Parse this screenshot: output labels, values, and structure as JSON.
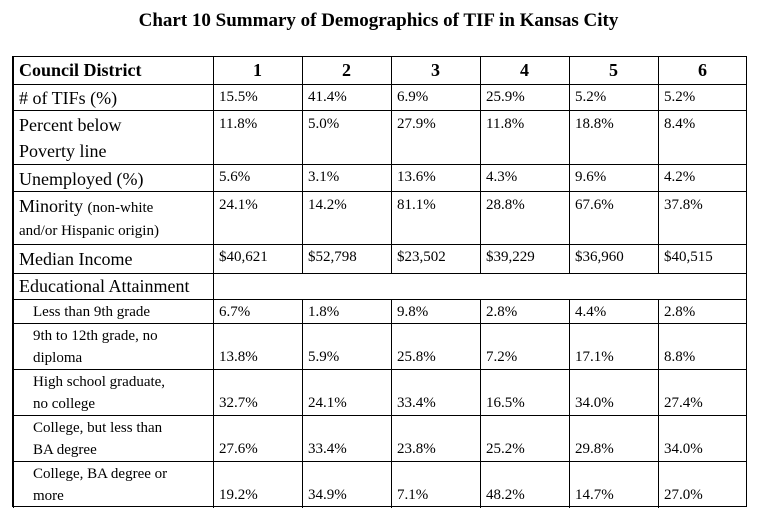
{
  "title": "Chart 10 Summary of Demographics of TIF in Kansas City",
  "header": {
    "label": "Council District",
    "districts": [
      "1",
      "2",
      "3",
      "4",
      "5",
      "6"
    ]
  },
  "rows": [
    {
      "label": "# of TIFs (%)",
      "values": [
        "15.5%",
        "41.4%",
        "6.9%",
        "25.9%",
        "5.2%",
        "5.2%"
      ]
    },
    {
      "label_line1": "Percent below",
      "label_line2": "Poverty line",
      "values": [
        "11.8%",
        "5.0%",
        "27.9%",
        "11.8%",
        "18.8%",
        "8.4%"
      ]
    },
    {
      "label": "Unemployed (%)",
      "values": [
        "5.6%",
        "3.1%",
        "13.6%",
        "4.3%",
        "9.6%",
        "4.2%"
      ]
    },
    {
      "label_main": "Minority",
      "label_note1": "(non-white",
      "label_note2": "and/or Hispanic origin)",
      "values": [
        "24.1%",
        "14.2%",
        "81.1%",
        "28.8%",
        "67.6%",
        "37.8%"
      ]
    },
    {
      "label": "Median Income",
      "values": [
        "$40,621",
        "$52,798",
        "$23,502",
        "$39,229",
        "$36,960",
        "$40,515"
      ]
    }
  ],
  "education": {
    "label": "Educational Attainment",
    "rows": [
      {
        "label_line1": "Less than 9th grade",
        "label_line2": "",
        "values": [
          "6.7%",
          "1.8%",
          "9.8%",
          "2.8%",
          "4.4%",
          "2.8%"
        ]
      },
      {
        "label_line1": "9th to 12th grade, no",
        "label_line2": "diploma",
        "values": [
          "13.8%",
          "5.9%",
          "25.8%",
          "7.2%",
          "17.1%",
          "8.8%"
        ]
      },
      {
        "label_line1": "High school graduate,",
        "label_line2": "no college",
        "values": [
          "32.7%",
          "24.1%",
          "33.4%",
          "16.5%",
          "34.0%",
          "27.4%"
        ]
      },
      {
        "label_line1": "College, but less than",
        "label_line2": "BA degree",
        "values": [
          "27.6%",
          "33.4%",
          "23.8%",
          "25.2%",
          "29.8%",
          "34.0%"
        ]
      },
      {
        "label_line1": "College, BA degree or",
        "label_line2": "more",
        "values": [
          "19.2%",
          "34.9%",
          "7.1%",
          "48.2%",
          "14.7%",
          "27.0%"
        ]
      }
    ]
  }
}
